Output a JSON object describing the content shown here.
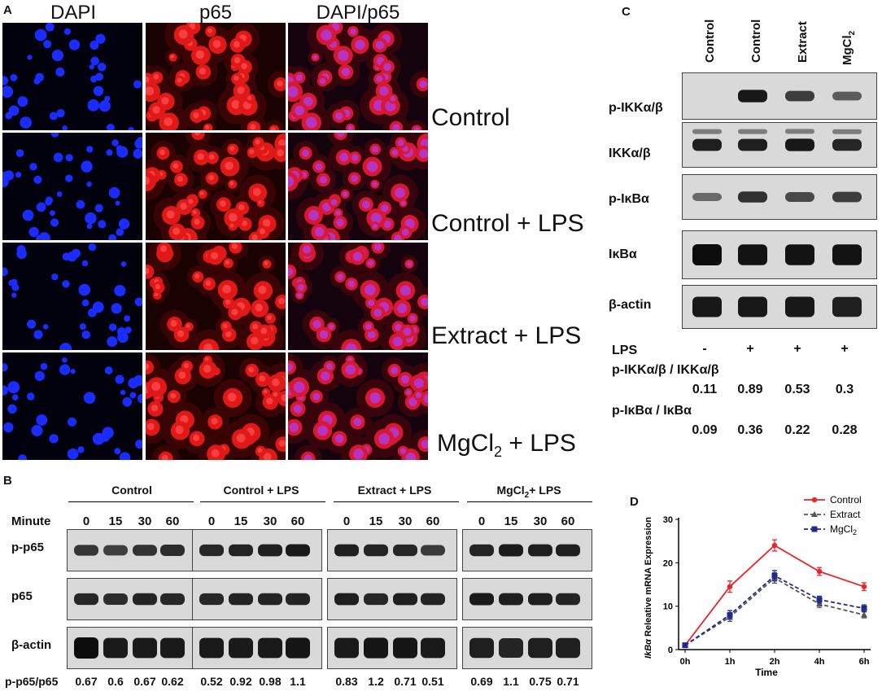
{
  "panel_a": {
    "letter": "A",
    "columns": [
      "DAPI",
      "p65",
      "DAPI/p65"
    ],
    "rows": [
      {
        "label": "Control"
      },
      {
        "label": "Control + LPS"
      },
      {
        "label": "Extract + LPS"
      },
      {
        "label_main": "MgCl",
        "label_sub": "2",
        "label_tail": " + LPS"
      }
    ]
  },
  "panel_b": {
    "letter": "B",
    "groups": [
      {
        "label": "Control",
        "ratios": [
          "0.67",
          "0.6",
          "0.67",
          "0.62"
        ]
      },
      {
        "label": "Control + LPS",
        "ratios": [
          "0.52",
          "0.92",
          "0.98",
          "1.1"
        ]
      },
      {
        "label": "Extract + LPS",
        "ratios": [
          "0.83",
          "1.2",
          "0.71",
          "0.51"
        ]
      },
      {
        "label_main": "MgCl",
        "label_sub": "2",
        "label_tail": "+ LPS",
        "ratios": [
          "0.69",
          "1.1",
          "0.75",
          "0.71"
        ]
      }
    ],
    "minute_label": "Minute",
    "timepoints": [
      "0",
      "15",
      "30",
      "60"
    ],
    "row_labels": [
      "p-p65",
      "p65",
      "β-actin"
    ],
    "ratio_label": "p-p65/p65"
  },
  "panel_c": {
    "letter": "C",
    "lanes": [
      "Control",
      "Control",
      "Extract"
    ],
    "lane_mg_main": "MgCl",
    "lane_mg_sub": "2",
    "row_labels": [
      "p-IKKα/β",
      "IKKα/β",
      "p-IκBα",
      "IκBα",
      "β-actin"
    ],
    "lps_label": "LPS",
    "lps_signs": [
      "-",
      "+",
      "+",
      "+"
    ],
    "ratio1_label": "p-IKKα/β / IKKα/β",
    "ratio1_values": [
      "0.11",
      "0.89",
      "0.53",
      "0.3"
    ],
    "ratio2_label": "p-IκBα / IκBα",
    "ratio2_values": [
      "0.09",
      "0.36",
      "0.22",
      "0.28"
    ]
  },
  "panel_d": {
    "letter": "D",
    "chart_data": {
      "type": "line",
      "x": [
        "0h",
        "1h",
        "2h",
        "4h",
        "6h"
      ],
      "xlabel": "Time",
      "ylabel_italic": "IkBα",
      "ylabel": "Releative mRNA Expression",
      "ylim": [
        0,
        30
      ],
      "yticks": [
        0,
        10,
        20,
        30
      ],
      "legend_position": "top-right",
      "series": [
        {
          "name": "Control",
          "color": "#e8262a",
          "dashed": false,
          "marker": "dot",
          "values": [
            1,
            14.5,
            24,
            18,
            14.5
          ],
          "errors": [
            0.3,
            1.3,
            1.3,
            0.9,
            0.9
          ]
        },
        {
          "name": "Extract",
          "color": "#555555",
          "dashed": true,
          "marker": "triangle",
          "values": [
            1,
            7.5,
            16.5,
            10.5,
            8
          ],
          "errors": [
            0.3,
            1.0,
            1.2,
            0.8,
            0.7
          ]
        },
        {
          "name": "MgCl",
          "name_sub": "2",
          "color": "#1f2a8a",
          "dashed": true,
          "marker": "square",
          "values": [
            1,
            8,
            17,
            11.5,
            9.5
          ],
          "errors": [
            0.3,
            1.0,
            1.2,
            0.8,
            0.8
          ]
        }
      ]
    }
  }
}
